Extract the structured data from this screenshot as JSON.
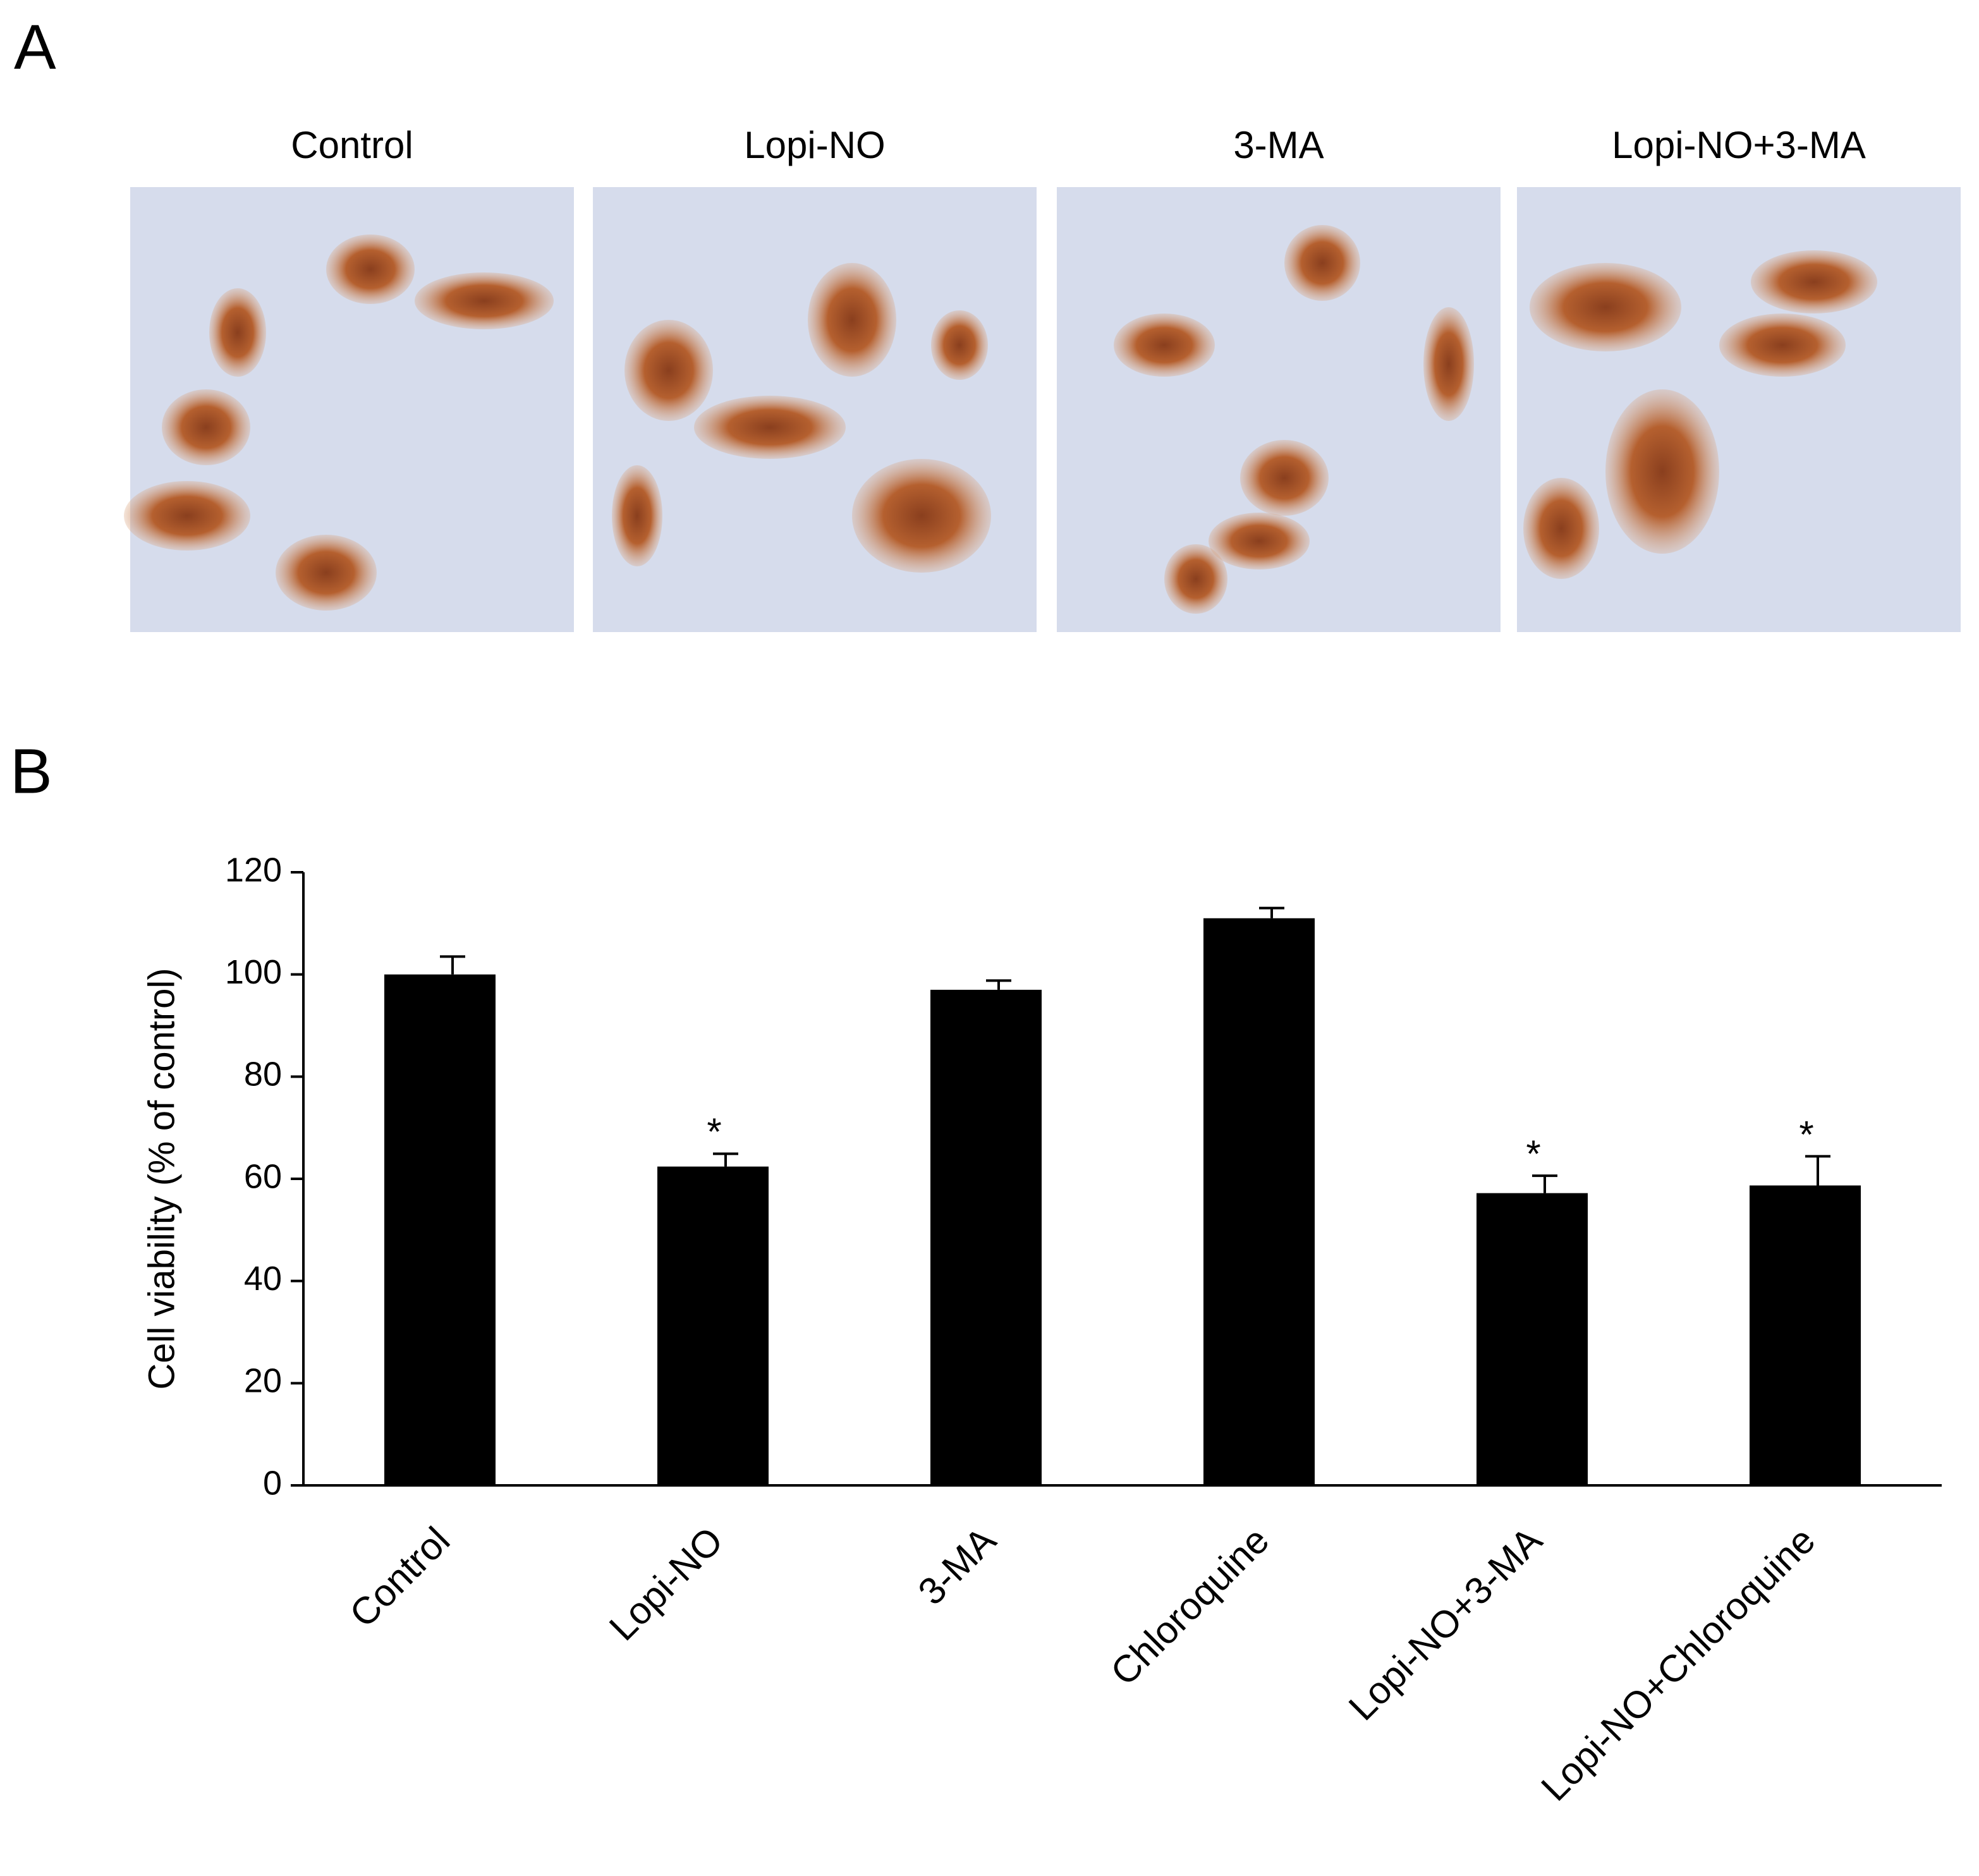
{
  "panel_a": {
    "label": "A",
    "image_titles": [
      "Control",
      "Lopi-NO",
      "3-MA",
      "Lopi-NO+3-MA"
    ]
  },
  "chart_data": {
    "type": "bar",
    "panel_label": "B",
    "categories": [
      "Control",
      "Lopi-NO",
      "3-MA",
      "Chloroquine",
      "Lopi-NO+3-MA",
      "Lopi-NO+Chloroquine"
    ],
    "values": [
      100,
      62.4,
      97,
      111,
      57.2,
      58.7
    ],
    "errors": [
      3.5,
      2.5,
      1.8,
      2,
      3.4,
      5.7
    ],
    "significance": [
      null,
      "*",
      null,
      null,
      "*",
      "*"
    ],
    "color": "#000000",
    "ylabel": "Cell viability (% of control)",
    "ylim": [
      0,
      120
    ],
    "yticks": [
      0,
      20,
      40,
      60,
      80,
      100,
      120
    ]
  }
}
